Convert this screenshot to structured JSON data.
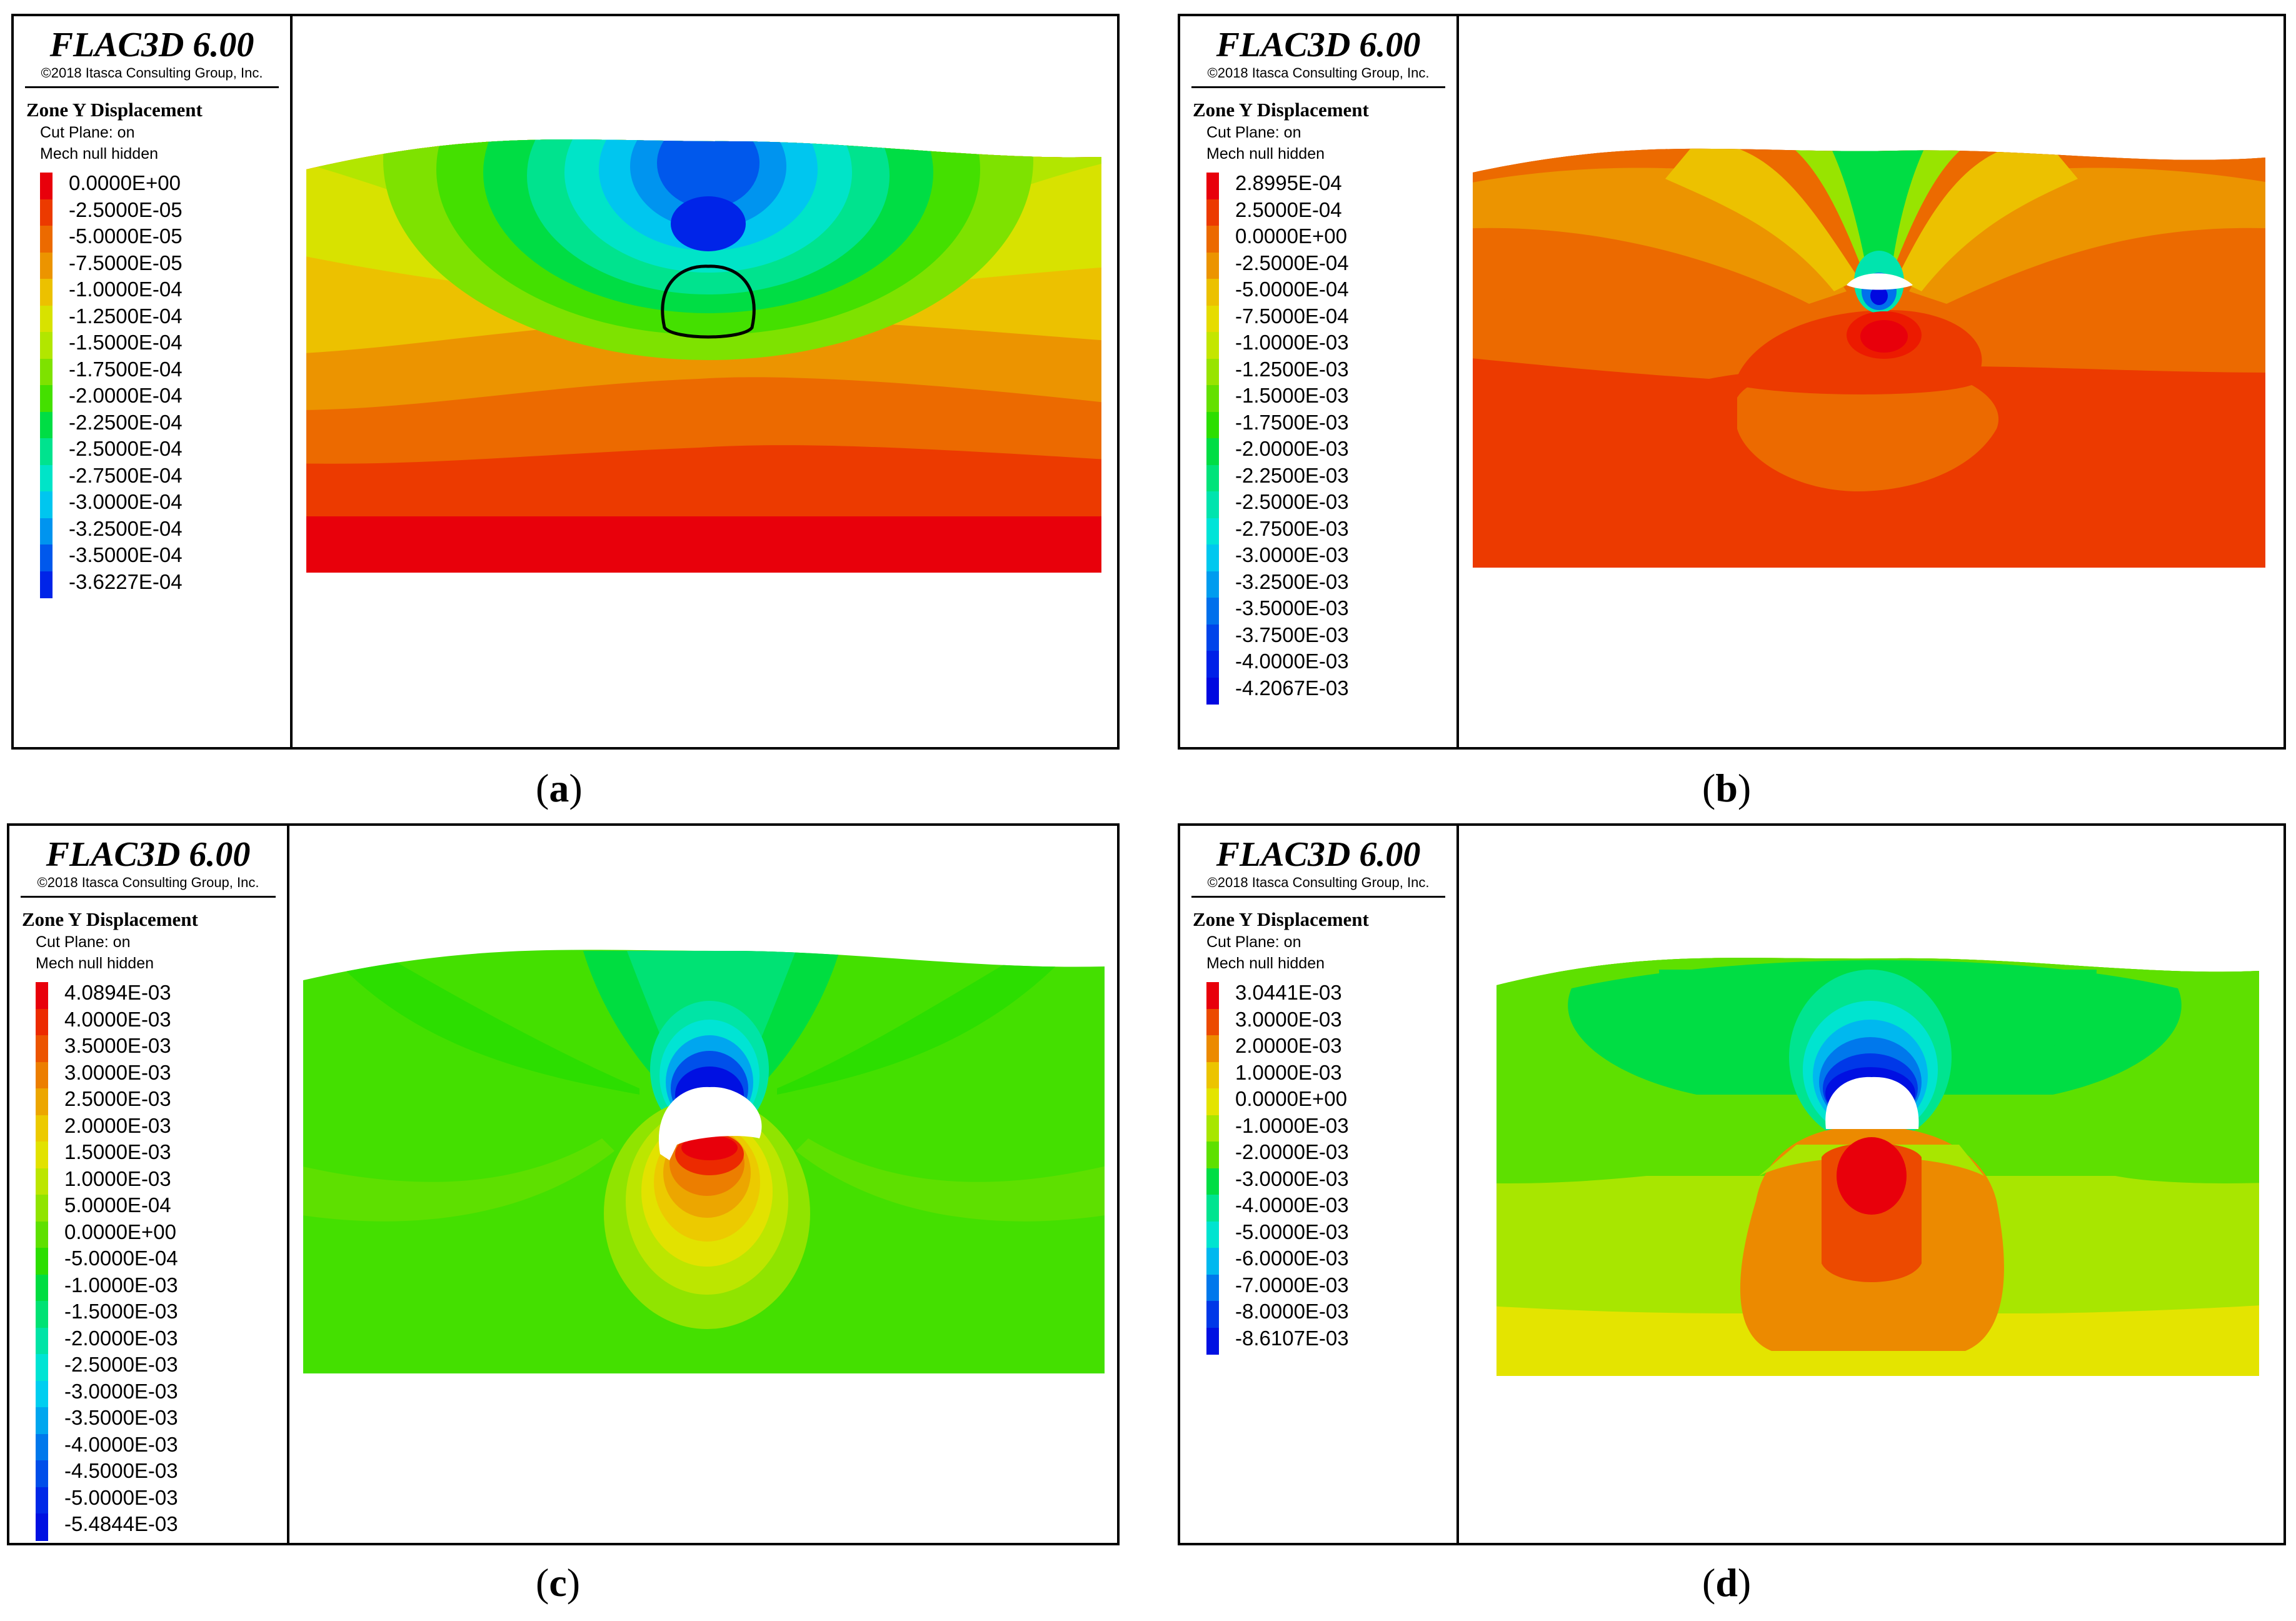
{
  "figure": {
    "panels": [
      {
        "id": "a",
        "caption_letter": "a",
        "app_title": "FLAC3D 6.00",
        "copyright": "©2018 Itasca Consulting Group, Inc.",
        "legend_title": "Zone Y Displacement",
        "cut_plane": "Cut Plane: on",
        "mech": "Mech  null hidden",
        "levels": [
          "0.0000E+00",
          "-2.5000E-05",
          "-5.0000E-05",
          "-7.5000E-05",
          "-1.0000E-04",
          "-1.2500E-04",
          "-1.5000E-04",
          "-1.7500E-04",
          "-2.0000E-04",
          "-2.2500E-04",
          "-2.5000E-04",
          "-2.7500E-04",
          "-3.0000E-04",
          "-3.2500E-04",
          "-3.5000E-04",
          "-3.6227E-04"
        ],
        "colors": [
          "#e8000b",
          "#ec3a00",
          "#ec6a00",
          "#ec9400",
          "#ecc100",
          "#d8e200",
          "#b2e600",
          "#7ee200",
          "#44e000",
          "#00dd44",
          "#00e38e",
          "#00e4c8",
          "#00c6ef",
          "#0094ef",
          "#0058ec",
          "#0024e8"
        ]
      },
      {
        "id": "b",
        "caption_letter": "b",
        "app_title": "FLAC3D 6.00",
        "copyright": "©2018 Itasca Consulting Group, Inc.",
        "legend_title": "Zone Y Displacement",
        "cut_plane": "Cut Plane: on",
        "mech": "Mech  null hidden",
        "levels": [
          "2.8995E-04",
          "2.5000E-04",
          "0.0000E+00",
          "-2.5000E-04",
          "-5.0000E-04",
          "-7.5000E-04",
          "-1.0000E-03",
          "-1.2500E-03",
          "-1.5000E-03",
          "-1.7500E-03",
          "-2.0000E-03",
          "-2.2500E-03",
          "-2.5000E-03",
          "-2.7500E-03",
          "-3.0000E-03",
          "-3.2500E-03",
          "-3.5000E-03",
          "-3.7500E-03",
          "-4.0000E-03",
          "-4.2067E-03"
        ],
        "colors": [
          "#e8000b",
          "#ec3a00",
          "#ec6a00",
          "#ec9400",
          "#ecc100",
          "#e6dc00",
          "#c4e600",
          "#98e400",
          "#64e000",
          "#2cde00",
          "#00dd44",
          "#00e37a",
          "#00e4ae",
          "#00e4d8",
          "#00c8ef",
          "#009cef",
          "#0070ec",
          "#0044ea",
          "#0020e8",
          "#0008e0"
        ]
      },
      {
        "id": "c",
        "caption_letter": "c",
        "app_title": "FLAC3D 6.00",
        "copyright": "©2018 Itasca Consulting Group, Inc.",
        "legend_title": "Zone Y Displacement",
        "cut_plane": "Cut Plane: on",
        "mech": "Mech  null hidden",
        "levels": [
          "4.0894E-03",
          "4.0000E-03",
          "3.5000E-03",
          "3.0000E-03",
          "2.5000E-03",
          "2.0000E-03",
          "1.5000E-03",
          "1.0000E-03",
          "5.0000E-04",
          "0.0000E+00",
          "-5.0000E-04",
          "-1.0000E-03",
          "-1.5000E-03",
          "-2.0000E-03",
          "-2.5000E-03",
          "-3.0000E-03",
          "-3.5000E-03",
          "-4.0000E-03",
          "-4.5000E-03",
          "-5.0000E-03",
          "-5.4844E-03"
        ],
        "colors": [
          "#e8000b",
          "#ec2a00",
          "#ec5400",
          "#ec7e00",
          "#eca600",
          "#ecca00",
          "#e2e200",
          "#bce600",
          "#90e400",
          "#5ee000",
          "#2cde00",
          "#00dd40",
          "#00e274",
          "#00e4a6",
          "#00e4d4",
          "#00cef0",
          "#00a6ef",
          "#0078ec",
          "#004eea",
          "#0028e8",
          "#0010e2"
        ]
      },
      {
        "id": "d",
        "caption_letter": "d",
        "app_title": "FLAC3D 6.00",
        "copyright": "©2018 Itasca Consulting Group, Inc.",
        "legend_title": "Zone Y Displacement",
        "cut_plane": "Cut Plane: on",
        "mech": "Mech  null hidden",
        "levels": [
          "3.0441E-03",
          "3.0000E-03",
          "2.0000E-03",
          "1.0000E-03",
          "0.0000E+00",
          "-1.0000E-03",
          "-2.0000E-03",
          "-3.0000E-03",
          "-4.0000E-03",
          "-5.0000E-03",
          "-6.0000E-03",
          "-7.0000E-03",
          "-8.0000E-03",
          "-8.6107E-03"
        ],
        "colors": [
          "#e8000b",
          "#ec4a00",
          "#ec8a00",
          "#ecc400",
          "#e4e400",
          "#a8e600",
          "#5ee000",
          "#00dd44",
          "#00e490",
          "#00e4d0",
          "#00b8ef",
          "#0078ec",
          "#0038e8",
          "#0010e2"
        ]
      }
    ]
  },
  "chart_data": [
    {
      "panel": "a",
      "type": "heatmap",
      "title": "Zone Y Displacement",
      "subtitle": "Cut Plane: on; Mech null hidden",
      "value_range": [
        -0.00036227,
        0.0
      ],
      "contour_levels": [
        0.0,
        -2.5e-05,
        -5e-05,
        -7.5e-05,
        -0.0001,
        -0.000125,
        -0.00015,
        -0.000175,
        -0.0002,
        -0.000225,
        -0.00025,
        -0.000275,
        -0.0003,
        -0.000325,
        -0.00035,
        -0.00036227
      ],
      "annotations": [
        "tunnel outline drawn at center; minimum displacement above tunnel crown"
      ]
    },
    {
      "panel": "b",
      "type": "heatmap",
      "title": "Zone Y Displacement",
      "subtitle": "Cut Plane: on; Mech null hidden",
      "value_range": [
        -0.0042067,
        0.00028995
      ],
      "contour_levels": [
        0.00028995,
        0.00025,
        0.0,
        -0.00025,
        -0.0005,
        -0.00075,
        -0.001,
        -0.00125,
        -0.0015,
        -0.00175,
        -0.002,
        -0.00225,
        -0.0025,
        -0.00275,
        -0.003,
        -0.00325,
        -0.0035,
        -0.00375,
        -0.004,
        -0.0042067
      ],
      "annotations": [
        "small excavated crown opening; heave below tunnel"
      ]
    },
    {
      "panel": "c",
      "type": "heatmap",
      "title": "Zone Y Displacement",
      "subtitle": "Cut Plane: on; Mech null hidden",
      "value_range": [
        -0.0054844,
        0.0040894
      ],
      "contour_levels": [
        0.0040894,
        0.004,
        0.0035,
        0.003,
        0.0025,
        0.002,
        0.0015,
        0.001,
        0.0005,
        0.0,
        -0.0005,
        -0.001,
        -0.0015,
        -0.002,
        -0.0025,
        -0.003,
        -0.0035,
        -0.004,
        -0.0045,
        -0.005,
        -0.0054844
      ],
      "annotations": [
        "upper bench excavated; settlement above crown, heave at bench floor"
      ]
    },
    {
      "panel": "d",
      "type": "heatmap",
      "title": "Zone Y Displacement",
      "subtitle": "Cut Plane: on; Mech null hidden",
      "value_range": [
        -0.0086107,
        0.0030441
      ],
      "contour_levels": [
        0.0030441,
        0.003,
        0.002,
        0.001,
        0.0,
        -0.001,
        -0.002,
        -0.003,
        -0.004,
        -0.005,
        -0.006,
        -0.007,
        -0.008,
        -0.0086107
      ],
      "annotations": [
        "full upper section excavated; heave zone below tunnel floor"
      ]
    }
  ]
}
